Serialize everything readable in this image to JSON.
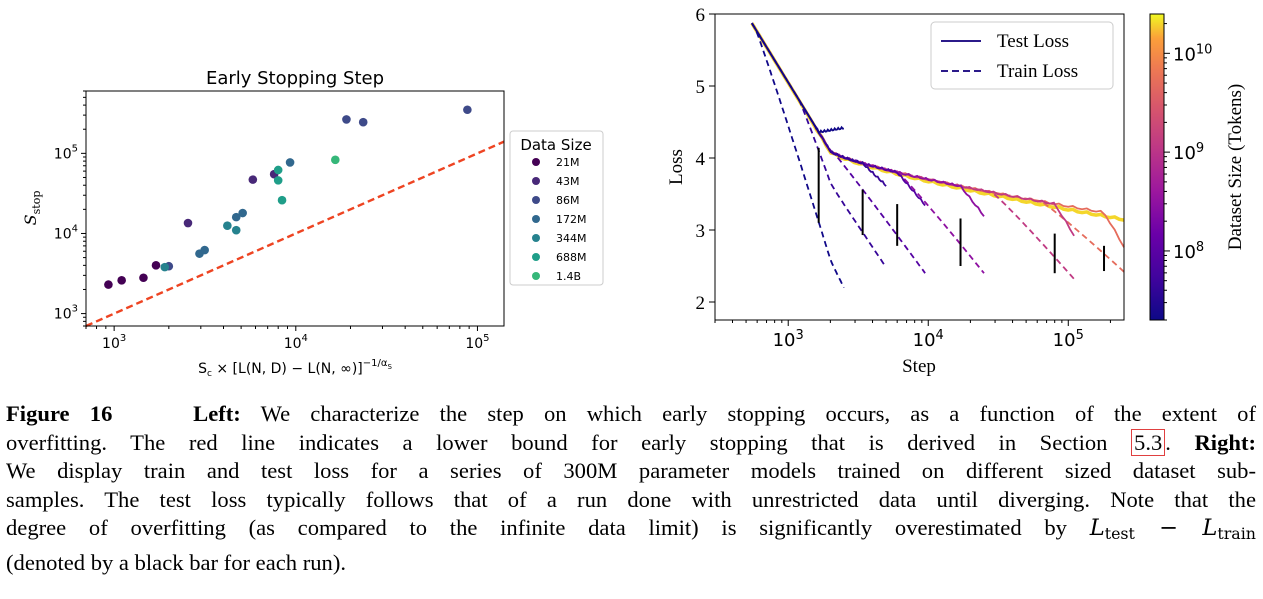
{
  "chart_data": [
    {
      "type": "scatter",
      "title": "Early Stopping Step",
      "xlabel": "S_c × [L(N,D) − L(N,∞)]^(−1/α_S)",
      "ylabel": "S_stop",
      "xscale": "log",
      "yscale": "log",
      "xlim": [
        700,
        140000
      ],
      "ylim": [
        700,
        600000
      ],
      "xticks": [
        {
          "value": 1000,
          "base": "10",
          "exp": "3"
        },
        {
          "value": 10000,
          "base": "10",
          "exp": "4"
        },
        {
          "value": 100000,
          "base": "10",
          "exp": "5"
        }
      ],
      "yticks": [
        {
          "value": 1000,
          "base": "10",
          "exp": "3"
        },
        {
          "value": 10000,
          "base": "10",
          "exp": "4"
        },
        {
          "value": 100000,
          "base": "10",
          "exp": "5"
        }
      ],
      "grid": false,
      "legend": {
        "title": "Data Size",
        "placement": "outside-right"
      },
      "lower_bound_line": {
        "style": "dashed",
        "color": "#ee4422",
        "x": [
          700,
          140000
        ],
        "y": [
          700,
          140000
        ]
      },
      "series": [
        {
          "name": "21M",
          "color": "#440154",
          "points": [
            [
              930,
              2300
            ],
            [
              1100,
              2600
            ],
            [
              1450,
              2800
            ],
            [
              1700,
              4000
            ]
          ]
        },
        {
          "name": "43M",
          "color": "#482878",
          "points": [
            [
              2550,
              13500
            ],
            [
              5800,
              47000
            ],
            [
              7600,
              55000
            ]
          ]
        },
        {
          "name": "86M",
          "color": "#3e4a89",
          "points": [
            [
              2000,
              3900
            ],
            [
              19000,
              265000
            ],
            [
              23500,
              245000
            ],
            [
              88000,
              350000
            ]
          ]
        },
        {
          "name": "172M",
          "color": "#31688e",
          "points": [
            [
              2950,
              5600
            ],
            [
              3150,
              6200
            ],
            [
              4700,
              16000
            ],
            [
              5100,
              18000
            ],
            [
              9300,
              77000
            ]
          ]
        },
        {
          "name": "344M",
          "color": "#26828e",
          "points": [
            [
              1900,
              3800
            ],
            [
              4200,
              12500
            ],
            [
              4700,
              11000
            ]
          ]
        },
        {
          "name": "688M",
          "color": "#1f9e89",
          "points": [
            [
              8000,
              46000
            ],
            [
              8000,
              62000
            ],
            [
              8400,
              26000
            ]
          ]
        },
        {
          "name": "1.4B",
          "color": "#35b779",
          "points": [
            [
              16500,
              83000
            ]
          ]
        }
      ]
    },
    {
      "type": "line",
      "xlabel": "Step",
      "ylabel": "Loss",
      "xscale": "log",
      "xlim": [
        300,
        250000
      ],
      "ylim": [
        1.75,
        6
      ],
      "xticks": [
        {
          "value": 1000,
          "base": "10",
          "exp": "3"
        },
        {
          "value": 10000,
          "base": "10",
          "exp": "4"
        },
        {
          "value": 100000,
          "base": "10",
          "exp": "5"
        }
      ],
      "yticks": [
        2,
        3,
        4,
        5,
        6
      ],
      "grid": false,
      "legend": {
        "placement": "top-right",
        "entries": [
          {
            "label": "Test Loss",
            "style": "solid"
          },
          {
            "label": "Train Loss",
            "style": "dashed"
          }
        ]
      },
      "colorbar": {
        "label": "Dataset Size (Tokens)",
        "scale": "log",
        "range": [
          20000000,
          25000000000
        ],
        "colormap": "plasma",
        "ticks": [
          {
            "value": 100000000,
            "base": "10",
            "exp": "8"
          },
          {
            "value": 1000000000,
            "base": "10",
            "exp": "9"
          },
          {
            "value": 10000000000,
            "base": "10",
            "exp": "10"
          }
        ]
      },
      "runs": [
        {
          "dataset_tokens": 21000000,
          "stop": 1650,
          "end": 2500,
          "test_final": 4.42,
          "train_final": 2.2,
          "bar": [
            3.1,
            4.14
          ]
        },
        {
          "dataset_tokens": 43000000,
          "stop": 3400,
          "end": 5000,
          "test_final": 3.62,
          "train_final": 2.48,
          "bar": [
            2.93,
            3.56
          ]
        },
        {
          "dataset_tokens": 86000000,
          "stop": 6000,
          "end": 9500,
          "test_final": 3.35,
          "train_final": 2.4,
          "bar": [
            2.78,
            3.36
          ]
        },
        {
          "dataset_tokens": 300000000,
          "stop": 17000,
          "end": 25000,
          "test_final": 3.2,
          "train_final": 2.4,
          "bar": [
            2.5,
            3.16
          ]
        },
        {
          "dataset_tokens": 1200000000,
          "stop": 80000,
          "end": 110000,
          "test_final": 2.93,
          "train_final": 2.32,
          "bar": [
            2.4,
            2.95
          ]
        },
        {
          "dataset_tokens": 5000000000,
          "stop": 180000,
          "end": 250000,
          "test_final": 2.77,
          "train_final": 2.42,
          "bar": [
            2.43,
            2.78
          ]
        },
        {
          "dataset_tokens": 20000000000,
          "stop": null,
          "end": 250000,
          "test_final": 2.57,
          "train_final": 2.57,
          "bar": null
        }
      ]
    }
  ],
  "caption": {
    "fig_label": "Figure 16",
    "left_label": "Left:",
    "p1": "We characterize the step on which early stopping occurs, as a function of the extent of",
    "p2a": "overfitting.  The red line indicates a lower bound for early stopping that is derived in Section",
    "ref": "5.3",
    "p2b": ".",
    "right_label": "Right:",
    "p3": "We display train and test loss for a series of 300M parameter models trained on different sized dataset sub-",
    "p4": "samples. The test loss typically follows that of a run done with unrestricted data until diverging. Note that the",
    "p5": "degree of overfitting (as compared to the infinite data limit) is significantly overestimated by",
    "math_L": "L",
    "sub_test": "test",
    "math_minus": " − ",
    "sub_train": "train",
    "p6": "(denoted by a black bar for each run)."
  }
}
